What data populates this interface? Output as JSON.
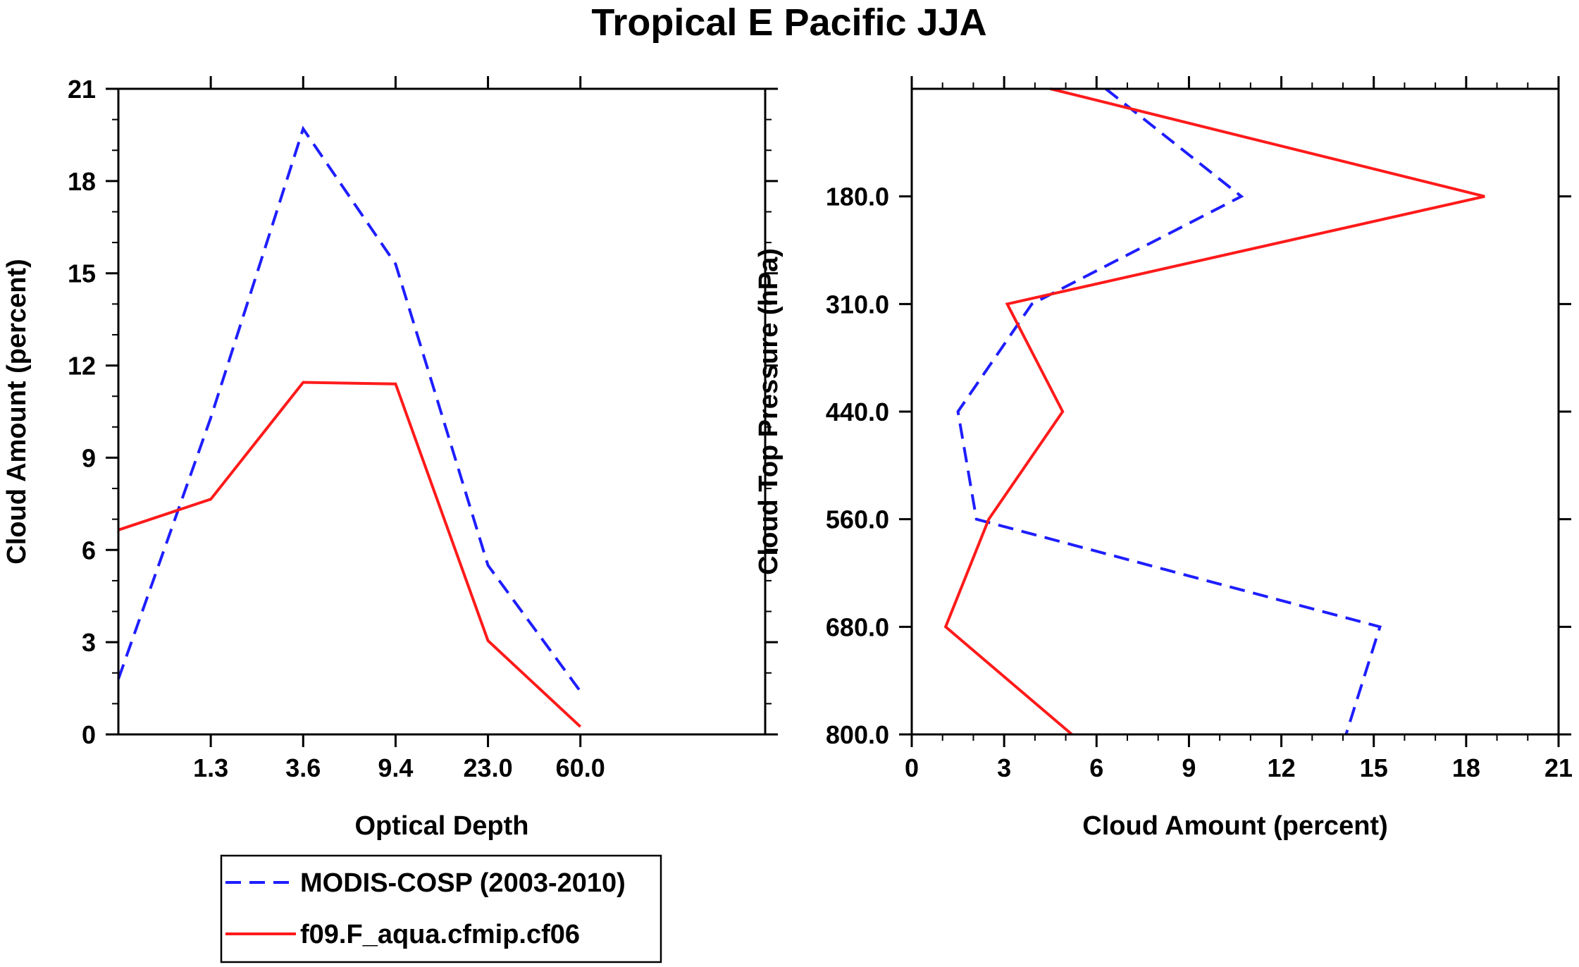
{
  "title": "Tropical E Pacific JJA",
  "colors": {
    "modis": "#1e1eff",
    "model": "#ff1a1a"
  },
  "legend": {
    "items": [
      {
        "label": "MODIS-COSP (2003-2010)",
        "style": "dashed",
        "color": "#1e1eff"
      },
      {
        "label": "f09.F_aqua.cfmip.cf06",
        "style": "solid",
        "color": "#ff1a1a"
      }
    ]
  },
  "chart_data": [
    {
      "type": "line",
      "title": "Tropical E Pacific JJA",
      "xlabel": "Optical Depth",
      "ylabel": "Cloud Amount (percent)",
      "x_bins": 7,
      "xticks": [
        "1.3",
        "3.6",
        "9.4",
        "23.0",
        "60.0"
      ],
      "yticks": [
        "0",
        "3",
        "6",
        "9",
        "12",
        "15",
        "18",
        "21"
      ],
      "ylim": [
        0,
        21
      ],
      "series": [
        {
          "name": "MODIS-COSP (2003-2010)",
          "values": [
            1.8,
            10.3,
            19.7,
            15.3,
            5.5,
            1.4
          ]
        },
        {
          "name": "f09.F_aqua.cfmip.cf06",
          "values": [
            6.65,
            7.65,
            11.45,
            11.4,
            3.05,
            0.25
          ]
        }
      ]
    },
    {
      "type": "line",
      "xlabel": "Cloud Amount (percent)",
      "ylabel": "Cloud Top Pressure (hPa)",
      "xlim": [
        0,
        21
      ],
      "xticks": [
        "0",
        "3",
        "6",
        "9",
        "12",
        "15",
        "18",
        "21"
      ],
      "yticks": [
        "180.0",
        "310.0",
        "440.0",
        "560.0",
        "680.0",
        "800.0"
      ],
      "y_bins": 6,
      "series": [
        {
          "name": "MODIS-COSP (2003-2010)",
          "values": [
            6.3,
            10.7,
            3.9,
            1.5,
            2.1,
            15.2,
            14.1
          ]
        },
        {
          "name": "f09.F_aqua.cfmip.cf06",
          "values": [
            4.5,
            18.6,
            3.1,
            4.9,
            2.5,
            1.1,
            5.2
          ]
        }
      ]
    }
  ]
}
